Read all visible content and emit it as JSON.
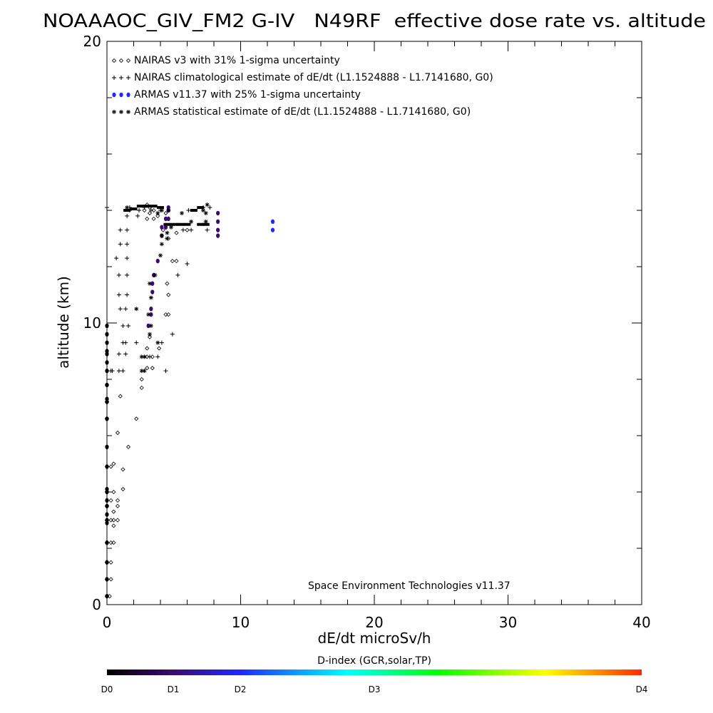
{
  "chart_data": {
    "type": "scatter",
    "title": "NOAAAOC_GIV_FM2 G-IV   N49RF  effective dose rate vs. altitude",
    "xlabel": "dE/dt microSv/h",
    "ylabel": "altitude (km)",
    "xlim": [
      0,
      40
    ],
    "ylim": [
      0,
      20
    ],
    "x_ticks": [
      0,
      10,
      20,
      30,
      40
    ],
    "y_ticks": [
      0,
      10,
      20
    ],
    "legend_position": "top-left",
    "legend": [
      "NAIRAS v3 with 31% 1-sigma uncertainty",
      "NAIRAS climatological estimate of dE/dt (L1.1524888 - L1.7141680, G0)",
      "ARMAS v11.37 with 25% 1-sigma uncertainty",
      "ARMAS statistical estimate of dE/dt (L1.1524888 - L1.7141680, G0)"
    ],
    "annotation": "Space Environment Technologies v11.37",
    "colorbar": {
      "title": "D-index (GCR,solar,TP)",
      "labels": [
        "D0",
        "D1",
        "D2",
        "D3",
        "D4"
      ],
      "label_positions": [
        0,
        1,
        2,
        3,
        4
      ],
      "colors": [
        "#000000",
        "#3c0a6e",
        "#1e28ff",
        "#00ffff",
        "#00ff00",
        "#ffff00",
        "#ff2800"
      ]
    },
    "series": [
      {
        "marker": "diamond",
        "points": [
          [
            0.2,
            0.3
          ],
          [
            0.3,
            0.9
          ],
          [
            0.3,
            1.5
          ],
          [
            0.3,
            2.2
          ],
          [
            0.5,
            2.2
          ],
          [
            0.5,
            2.8
          ],
          [
            0.3,
            3.0
          ],
          [
            0.5,
            3.0
          ],
          [
            0.8,
            3.0
          ],
          [
            0.5,
            3.3
          ],
          [
            0.8,
            3.5
          ],
          [
            0.3,
            3.7
          ],
          [
            0.8,
            3.7
          ],
          [
            0.5,
            4.0
          ],
          [
            1.2,
            4.1
          ],
          [
            0.3,
            4.9
          ],
          [
            0.5,
            5.0
          ],
          [
            1.2,
            4.8
          ],
          [
            1.6,
            5.6
          ],
          [
            0.8,
            6.1
          ],
          [
            2.2,
            6.6
          ],
          [
            1.0,
            7.4
          ],
          [
            2.6,
            7.7
          ],
          [
            2.6,
            8.0
          ],
          [
            3.0,
            8.4
          ],
          [
            3.4,
            8.4
          ],
          [
            3.0,
            8.8
          ],
          [
            3.4,
            8.8
          ],
          [
            3.0,
            9.1
          ],
          [
            3.9,
            9.1
          ],
          [
            3.2,
            9.5
          ],
          [
            4.4,
            10.3
          ],
          [
            4.6,
            10.3
          ],
          [
            4.6,
            11.0
          ],
          [
            4.5,
            11.4
          ],
          [
            4.9,
            12.2
          ],
          [
            5.2,
            12.2
          ],
          [
            4.6,
            13.0
          ],
          [
            4.2,
            13.3
          ],
          [
            5.2,
            13.2
          ],
          [
            6.0,
            13.3
          ],
          [
            3.0,
            13.7
          ],
          [
            3.5,
            13.7
          ],
          [
            3.2,
            13.9
          ],
          [
            3.8,
            13.8
          ],
          [
            4.4,
            13.9
          ],
          [
            3.5,
            14.0
          ],
          [
            2.8,
            14.0
          ],
          [
            3.2,
            14.1
          ],
          [
            3.0,
            14.2
          ]
        ]
      },
      {
        "marker": "plus",
        "points": [
          [
            0.0,
            0.3
          ],
          [
            0.0,
            0.9
          ],
          [
            0.0,
            1.5
          ],
          [
            0.0,
            2.2
          ],
          [
            0.0,
            3.0
          ],
          [
            0.0,
            3.5
          ],
          [
            0.0,
            4.0
          ],
          [
            0.0,
            4.9
          ],
          [
            0.0,
            6.6
          ],
          [
            0.0,
            7.2
          ],
          [
            0.0,
            7.8
          ],
          [
            0.3,
            8.3
          ],
          [
            0.4,
            8.3
          ],
          [
            0.9,
            8.3
          ],
          [
            1.2,
            8.3
          ],
          [
            0.9,
            8.9
          ],
          [
            1.4,
            8.9
          ],
          [
            3.2,
            8.8
          ],
          [
            3.8,
            8.8
          ],
          [
            4.4,
            8.3
          ],
          [
            1.2,
            9.3
          ],
          [
            1.4,
            9.3
          ],
          [
            2.2,
            9.3
          ],
          [
            4.1,
            9.3
          ],
          [
            4.9,
            9.6
          ],
          [
            1.2,
            9.9
          ],
          [
            1.6,
            9.9
          ],
          [
            1.0,
            10.5
          ],
          [
            1.4,
            10.5
          ],
          [
            0.9,
            11.0
          ],
          [
            1.5,
            11.0
          ],
          [
            0.9,
            11.7
          ],
          [
            1.5,
            11.7
          ],
          [
            5.3,
            11.7
          ],
          [
            0.7,
            12.3
          ],
          [
            1.5,
            12.3
          ],
          [
            6.0,
            12.1
          ],
          [
            1.0,
            12.8
          ],
          [
            1.5,
            12.8
          ],
          [
            1.0,
            13.3
          ],
          [
            1.5,
            13.3
          ],
          [
            5.7,
            13.3
          ],
          [
            6.3,
            13.3
          ],
          [
            7.5,
            13.3
          ],
          [
            1.5,
            13.8
          ],
          [
            2.3,
            13.8
          ],
          [
            1.7,
            14.0
          ],
          [
            2.4,
            14.0
          ],
          [
            3.3,
            14.0
          ],
          [
            4.0,
            14.0
          ],
          [
            6.1,
            14.0
          ],
          [
            1.7,
            14.1
          ],
          [
            2.8,
            14.1
          ],
          [
            7.2,
            14.1
          ],
          [
            7.7,
            14.1
          ],
          [
            0.0,
            14.1
          ]
        ]
      },
      {
        "marker": "dot",
        "points": [
          [
            0.0,
            0.3
          ],
          [
            0.0,
            0.9
          ],
          [
            0.0,
            1.5
          ],
          [
            0.0,
            2.2
          ],
          [
            0.0,
            2.9
          ],
          [
            0.0,
            3.0
          ],
          [
            0.0,
            3.2
          ],
          [
            0.0,
            3.5
          ],
          [
            0.0,
            3.7
          ],
          [
            0.0,
            4.0
          ],
          [
            0.0,
            4.1
          ],
          [
            0.0,
            4.9
          ],
          [
            0.0,
            5.6
          ],
          [
            0.0,
            6.6
          ],
          [
            0.0,
            7.2
          ],
          [
            0.0,
            7.3
          ],
          [
            0.0,
            7.8
          ],
          [
            0.0,
            8.3
          ],
          [
            0.0,
            8.6
          ],
          [
            0.0,
            8.9
          ],
          [
            0.0,
            9.0
          ],
          [
            0.0,
            9.3
          ],
          [
            0.0,
            9.6
          ],
          [
            0.0,
            9.9
          ],
          [
            3.1,
            9.9
          ],
          [
            3.3,
            10.3
          ],
          [
            3.3,
            10.5
          ],
          [
            3.4,
            11.1
          ],
          [
            3.4,
            11.4
          ],
          [
            3.5,
            11.7
          ],
          [
            3.8,
            12.2
          ],
          [
            4.1,
            13.1
          ],
          [
            4.1,
            13.4
          ],
          [
            4.4,
            13.4
          ],
          [
            4.4,
            13.7
          ],
          [
            4.6,
            13.7
          ],
          [
            4.6,
            14.0
          ],
          [
            4.6,
            14.1
          ],
          [
            8.3,
            13.1
          ],
          [
            8.3,
            13.3
          ],
          [
            8.3,
            13.6
          ],
          [
            8.3,
            13.9
          ],
          [
            12.4,
            13.3
          ],
          [
            12.4,
            13.6
          ]
        ],
        "d_index": [
          0,
          0,
          0,
          0,
          0,
          0,
          0,
          0,
          0,
          0,
          0,
          0,
          0,
          0,
          0,
          0,
          0,
          0,
          0,
          0,
          0,
          0,
          0,
          0,
          1,
          1,
          1,
          1,
          1,
          1,
          1,
          1,
          1,
          1,
          1,
          1,
          1,
          1,
          1,
          1,
          1,
          1,
          1.5,
          1.5
        ]
      },
      {
        "marker": "asterisk",
        "points": [
          [
            2.6,
            8.3
          ],
          [
            2.8,
            8.3
          ],
          [
            2.6,
            8.8
          ],
          [
            2.8,
            8.8
          ],
          [
            3.8,
            9.3
          ],
          [
            3.2,
            9.6
          ],
          [
            3.3,
            9.9
          ],
          [
            2.2,
            10.5
          ],
          [
            3.1,
            10.3
          ],
          [
            3.3,
            10.9
          ],
          [
            3.2,
            11.4
          ],
          [
            3.6,
            11.7
          ],
          [
            4.0,
            12.4
          ],
          [
            4.1,
            12.8
          ],
          [
            4.5,
            13.0
          ],
          [
            4.1,
            13.1
          ],
          [
            4.5,
            13.2
          ],
          [
            4.8,
            13.4
          ],
          [
            6.3,
            13.6
          ],
          [
            7.4,
            13.6
          ],
          [
            3.8,
            13.9
          ],
          [
            5.6,
            13.9
          ],
          [
            7.4,
            13.9
          ],
          [
            4.6,
            14.0
          ],
          [
            7.2,
            14.0
          ],
          [
            7.5,
            14.2
          ],
          [
            1.5,
            14.1
          ],
          [
            4.1,
            14.0
          ]
        ]
      },
      {
        "marker": "bar",
        "points": [
          [
            2.5,
            14.15
          ],
          [
            3.0,
            14.15
          ],
          [
            3.5,
            14.15
          ],
          [
            4.0,
            14.1
          ],
          [
            4.5,
            13.5
          ],
          [
            5.0,
            13.5
          ],
          [
            5.5,
            13.5
          ],
          [
            6.0,
            13.5
          ],
          [
            7.0,
            13.5
          ],
          [
            7.4,
            13.5
          ],
          [
            6.5,
            14.0
          ],
          [
            7.0,
            14.1
          ],
          [
            1.5,
            14.0
          ],
          [
            2.0,
            14.05
          ]
        ]
      }
    ]
  }
}
